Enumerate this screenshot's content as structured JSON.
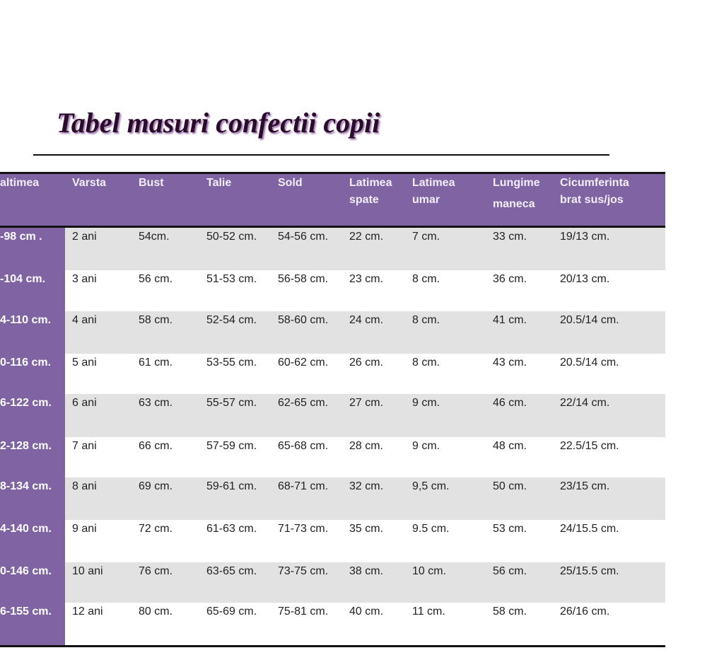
{
  "title": "Tabel masuri confectii copii",
  "table": {
    "header": [
      [
        "altimea"
      ],
      [
        "Varsta"
      ],
      [
        "Bust"
      ],
      [
        "Talie"
      ],
      [
        "Sold"
      ],
      [
        "Latimea",
        "spate"
      ],
      [
        "Latimea",
        "umar"
      ],
      [
        "Lungime",
        "maneca"
      ],
      [
        "Cicumferinta",
        "brat sus/jos"
      ]
    ],
    "rows": [
      [
        "-98  cm .",
        "2 ani",
        "54cm.",
        "50-52 cm.",
        "54-56 cm.",
        "22 cm.",
        "7 cm.",
        "33 cm.",
        "19/13 cm."
      ],
      [
        "-104 cm.",
        "3 ani",
        "56 cm.",
        "51-53 cm.",
        "56-58 cm.",
        "23 cm.",
        "8 cm.",
        "36 cm.",
        "20/13 cm."
      ],
      [
        "4-110 cm.",
        "4 ani",
        "58 cm.",
        "52-54 cm.",
        "58-60 cm.",
        "24 cm.",
        "8 cm.",
        "41 cm.",
        "20.5/14 cm."
      ],
      [
        "0-116 cm.",
        "5 ani",
        "61 cm.",
        "53-55 cm.",
        "60-62 cm.",
        "26 cm.",
        "8 cm.",
        "43 cm.",
        "20.5/14 cm."
      ],
      [
        "6-122 cm.",
        "6 ani",
        "63 cm.",
        "55-57 cm.",
        "62-65 cm.",
        "27 cm.",
        "9 cm.",
        "46 cm.",
        "22/14 cm."
      ],
      [
        "2-128 cm.",
        "7 ani",
        "66 cm.",
        "57-59 cm.",
        "65-68 cm.",
        "28 cm.",
        "9 cm.",
        "48 cm.",
        "22.5/15 cm."
      ],
      [
        "8-134 cm.",
        "8 ani",
        "69 cm.",
        "59-61 cm.",
        "68-71 cm.",
        "32 cm.",
        "9,5 cm.",
        "50 cm.",
        "23/15 cm."
      ],
      [
        "4-140 cm.",
        "9 ani",
        "72 cm.",
        "61-63 cm.",
        "71-73 cm.",
        "35 cm.",
        "9.5 cm.",
        "53 cm.",
        "24/15.5 cm."
      ],
      [
        "0-146 cm.",
        "10 ani",
        "76 cm.",
        "63-65 cm.",
        "73-75 cm.",
        "38 cm.",
        "10 cm.",
        "56 cm.",
        "25/15.5 cm."
      ],
      [
        "6-155 cm.",
        "12 ani",
        "80 cm.",
        "65-69 cm.",
        "75-81 cm.",
        "40 cm.",
        "11 cm.",
        "58 cm.",
        "26/16 cm."
      ]
    ]
  }
}
